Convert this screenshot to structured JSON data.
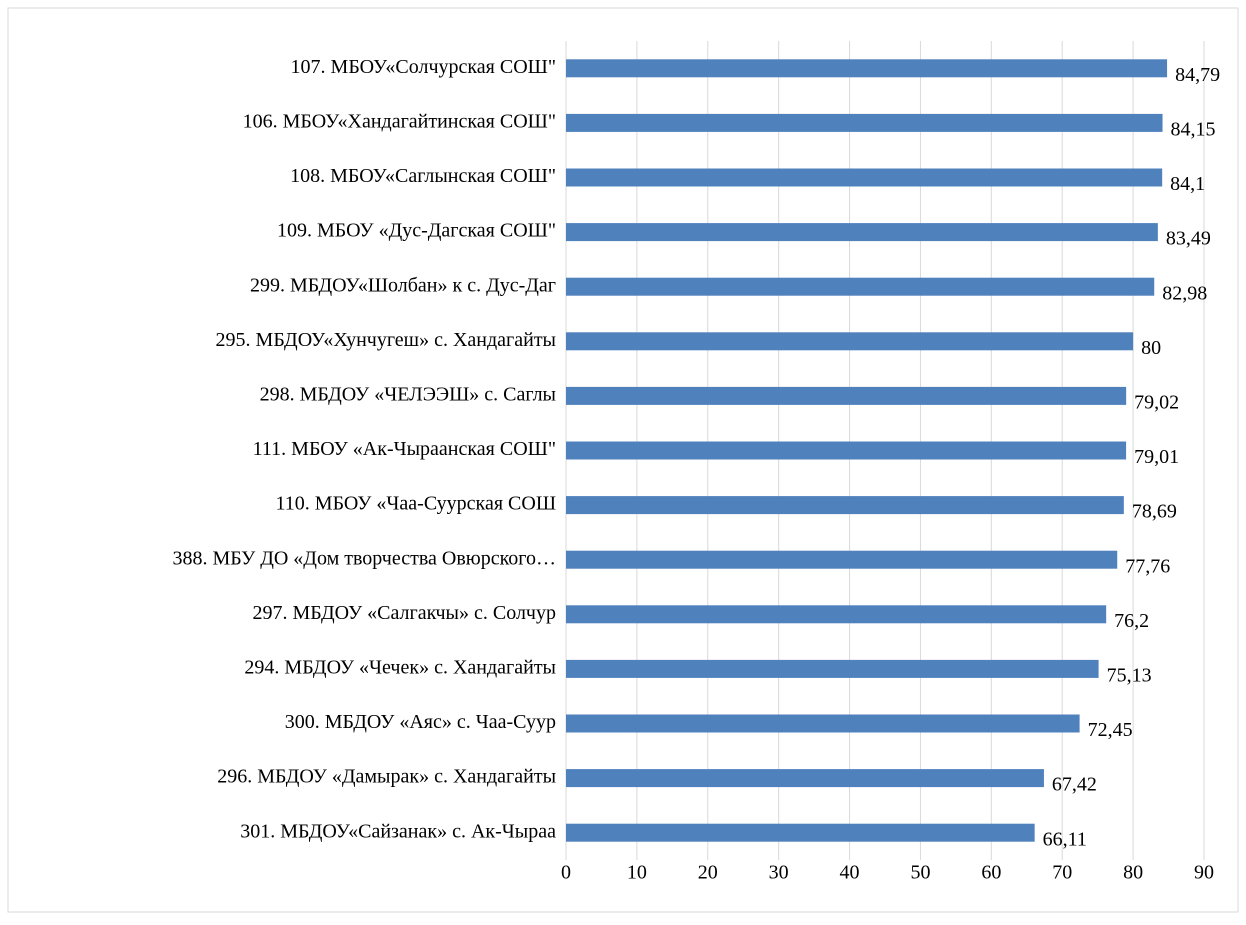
{
  "chart_data": {
    "type": "hbar",
    "categories": [
      "107. МБОУ«Солчурская СОШ\"",
      "106. МБОУ«Хандагайтинская СОШ\"",
      "108. МБОУ«Саглынская СОШ\"",
      "109. МБОУ «Дус-Дагская СОШ\"",
      "299. МБДОУ«Шолбан» к с. Дус-Даг",
      "295. МБДОУ«Хунчугеш» с. Хандагайты",
      "298. МБДОУ «ЧЕЛЭЭШ» с. Саглы",
      "111. МБОУ «Ак-Чыраанская СОШ\"",
      "110. МБОУ «Чаа-Суурская СОШ",
      "388. МБУ ДО «Дом творчества Овюрского…",
      "297. МБДОУ «Салгакчы» с. Солчур",
      "294. МБДОУ «Чечек»  с. Хандагайты",
      "300. МБДОУ «Аяс» с. Чаа-Суур",
      "296. МБДОУ «Дамырак» с. Хандагайты",
      "301. МБДОУ«Сайзанак» с. Ак-Чыраа"
    ],
    "values": [
      84.79,
      84.15,
      84.1,
      83.49,
      82.98,
      80,
      79.02,
      79.01,
      78.69,
      77.76,
      76.2,
      75.13,
      72.45,
      67.42,
      66.11
    ],
    "value_labels": [
      "84,79",
      "84,15",
      "84,1",
      "83,49",
      "82,98",
      "80",
      "79,02",
      "79,01",
      "78,69",
      "77,76",
      "76,2",
      "75,13",
      "72,45",
      "67,42",
      "66,11"
    ],
    "color": "#4f81bd",
    "xlim": [
      0,
      90
    ],
    "xticks": [
      0,
      10,
      20,
      30,
      40,
      50,
      60,
      70,
      80,
      90
    ],
    "grid": true
  }
}
